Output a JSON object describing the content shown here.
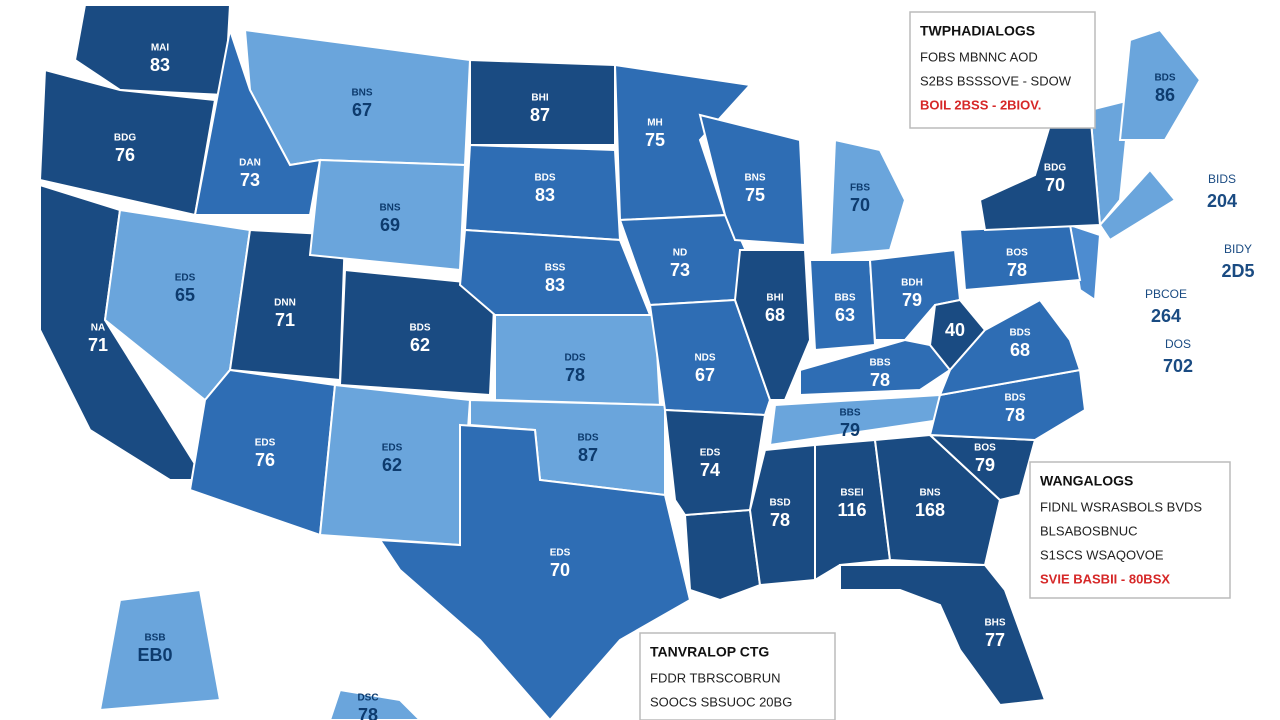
{
  "regions": [
    {
      "label": "MAI",
      "value": "83"
    },
    {
      "label": "BDG",
      "value": "76"
    },
    {
      "label": "NA",
      "value": "71"
    },
    {
      "label": "BNS",
      "value": "67"
    },
    {
      "label": "DAN",
      "value": "73"
    },
    {
      "label": "EDS",
      "value": "65"
    },
    {
      "label": "DNN",
      "value": "71"
    },
    {
      "label": "BNS",
      "value": "69"
    },
    {
      "label": "BDS",
      "value": "62"
    },
    {
      "label": "EDS",
      "value": "76"
    },
    {
      "label": "EDS",
      "value": "62"
    },
    {
      "label": "BHI",
      "value": "87"
    },
    {
      "label": "BDS",
      "value": "83"
    },
    {
      "label": "BSS",
      "value": "83"
    },
    {
      "label": "DDS",
      "value": "78"
    },
    {
      "label": "BDS",
      "value": "87"
    },
    {
      "label": "EDS",
      "value": "70"
    },
    {
      "label": "MH",
      "value": "75"
    },
    {
      "label": "ND",
      "value": "73"
    },
    {
      "label": "NDS",
      "value": "67"
    },
    {
      "label": "EDS",
      "value": "74"
    },
    {
      "label": "BNS",
      "value": "75"
    },
    {
      "label": "BHI",
      "value": "68"
    },
    {
      "label": "FBS",
      "value": "70"
    },
    {
      "label": "BBS",
      "value": "63"
    },
    {
      "label": "BDH",
      "value": "79"
    },
    {
      "label": "BBS",
      "value": "78"
    },
    {
      "label": "BBS",
      "value": "79"
    },
    {
      "label": "BSD",
      "value": "78"
    },
    {
      "label": "BSEI",
      "value": "116"
    },
    {
      "label": "BNS",
      "value": "168"
    },
    {
      "label": "BHS",
      "value": "77"
    },
    {
      "label": "BOS",
      "value": "79"
    },
    {
      "label": "BDS",
      "value": "78"
    },
    {
      "value": "40"
    },
    {
      "label": "BDS",
      "value": "68"
    },
    {
      "label": "BOS",
      "value": "78"
    },
    {
      "label": "BDG",
      "value": "70"
    },
    {
      "label": "BDS",
      "value": "86"
    },
    {
      "label": "BSB",
      "value": "EB0"
    },
    {
      "label": "DSC",
      "value": "78"
    }
  ],
  "side_labels": [
    {
      "label": "BIDS",
      "value": "204"
    },
    {
      "label": "BIDY",
      "value": "2D5"
    },
    {
      "label": "PBCOE",
      "value": "264"
    },
    {
      "label": "DOS",
      "value": "702"
    }
  ],
  "callouts": [
    {
      "title": "TWPHADIALOGS",
      "lines": [
        "FOBS MBNNC AOD",
        "S2BS BSSSOVE - SDOW"
      ],
      "highlight": "BOIL 2BSS - 2BIOV."
    },
    {
      "title": "WANGALOGS",
      "lines": [
        "FIDNL WSRASBOLS BVDS",
        "BLSABOSBNUC",
        "S1SCS WSAQOVOE"
      ],
      "highlight": "SVIE BASBII - 80BSX"
    },
    {
      "title": "TANVRALOP CTG",
      "lines": [
        "FDDR TBRSCOBRUN",
        "SOOCS SBSUOC 20BG"
      ]
    }
  ]
}
